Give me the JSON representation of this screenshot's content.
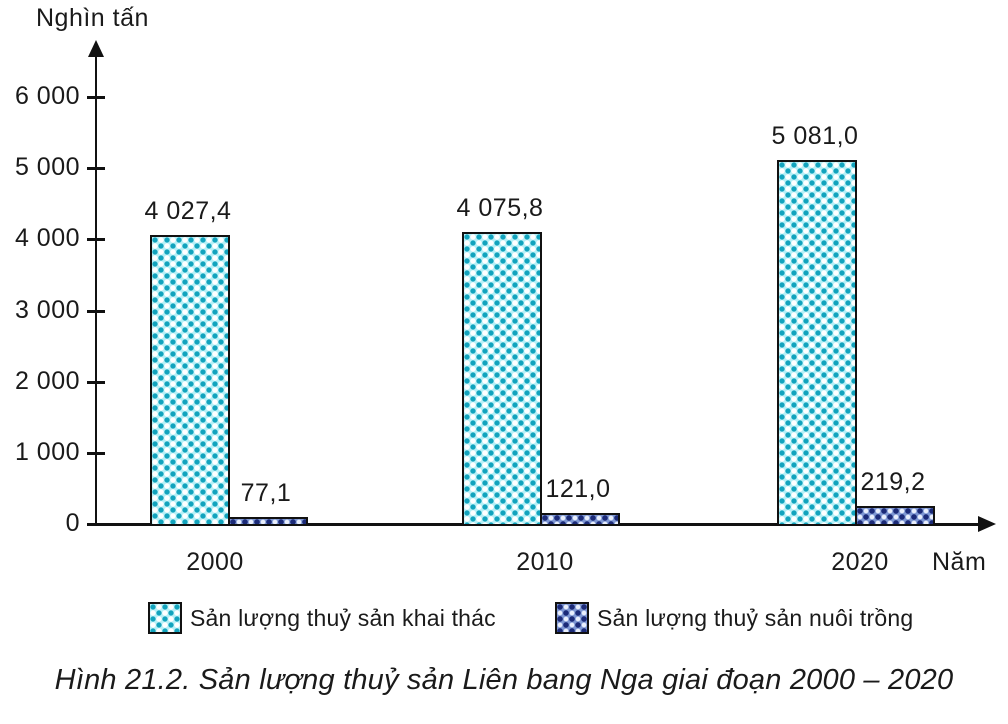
{
  "chart": {
    "ylabel": "Nghìn tấn",
    "xlabel": "Năm",
    "caption": "Hình 21.2. Sản lượng thuỷ sản Liên bang Nga giai đoạn 2000 – 2020"
  },
  "chart_data": {
    "type": "bar",
    "title": "",
    "ylabel": "Nghìn tấn",
    "xlabel": "Năm",
    "categories": [
      "2000",
      "2010",
      "2020"
    ],
    "series": [
      {
        "name": "Sản lượng thuỷ sản khai thác",
        "values": [
          4027.4,
          4075.8,
          5081.0
        ],
        "value_labels": [
          "4 027,4",
          "4 075,8",
          "5 081,0"
        ],
        "color": "#8ce6f0",
        "pattern": "cyan-dots"
      },
      {
        "name": "Sản lượng thuỷ sản nuôi trồng",
        "values": [
          77.1,
          121.0,
          219.2
        ],
        "value_labels": [
          "77,1",
          "121,0",
          "219,2"
        ],
        "color": "#4f6fb8",
        "pattern": "blue-rings"
      }
    ],
    "ylim": [
      0,
      6000
    ],
    "yticks": [
      0,
      1000,
      2000,
      3000,
      4000,
      5000,
      6000
    ],
    "ytick_labels": [
      "0",
      "1 000",
      "2 000",
      "3 000",
      "4 000",
      "5 000",
      "6 000"
    ],
    "grid": false,
    "legend_position": "bottom",
    "axis_color": "#111111",
    "text_color": "#1a1a1a"
  }
}
